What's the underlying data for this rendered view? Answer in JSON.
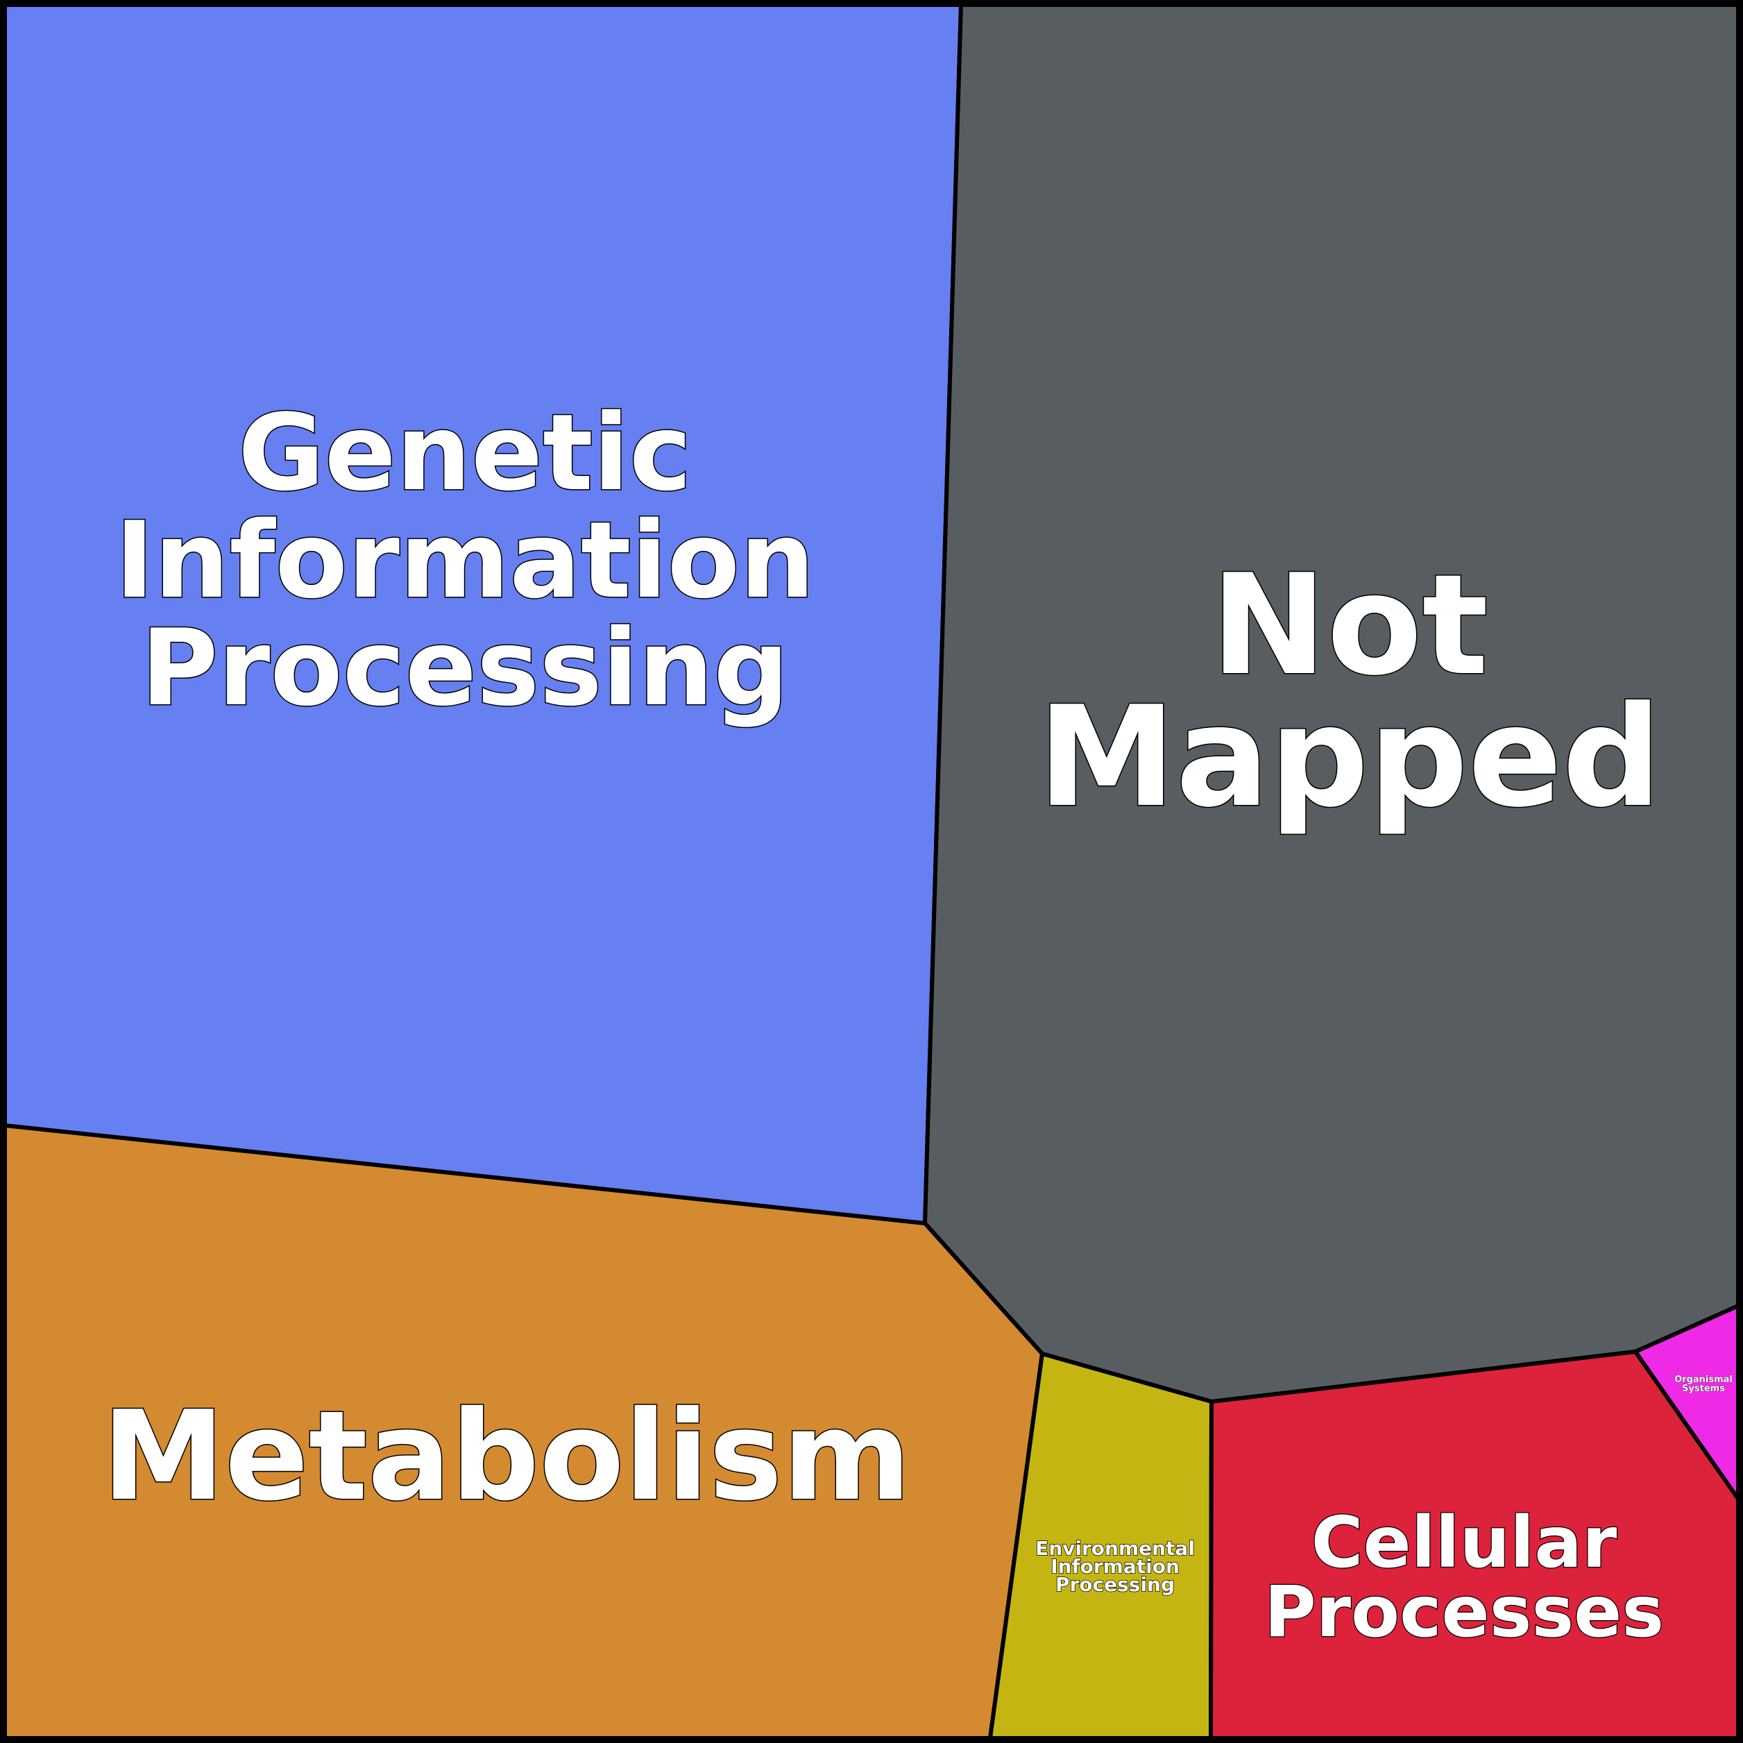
{
  "diagram": {
    "type": "voronoi-treemap",
    "cells": [
      {
        "id": "genetic",
        "label": "Genetic Information Processing",
        "lines": [
          "Genetic",
          "Information",
          "Processing"
        ],
        "color": "#6680f2"
      },
      {
        "id": "not-mapped",
        "label": "Not Mapped",
        "lines": [
          "Not",
          "Mapped"
        ],
        "color": "#575d61"
      },
      {
        "id": "metabolism",
        "label": "Metabolism",
        "lines": [
          "Metabolism"
        ],
        "color": "#d48a31"
      },
      {
        "id": "environmental",
        "label": "Environmental Information Processing",
        "lines": [
          "Environmental",
          "Information",
          "Processing"
        ],
        "color": "#c4b512"
      },
      {
        "id": "cellular",
        "label": "Cellular Processes",
        "lines": [
          "Cellular",
          "Processes"
        ],
        "color": "#dd223b"
      },
      {
        "id": "organismal",
        "label": "Organismal Systems",
        "lines": [
          "Organismal",
          "Systems"
        ],
        "color": "#ee2ae6"
      }
    ]
  }
}
